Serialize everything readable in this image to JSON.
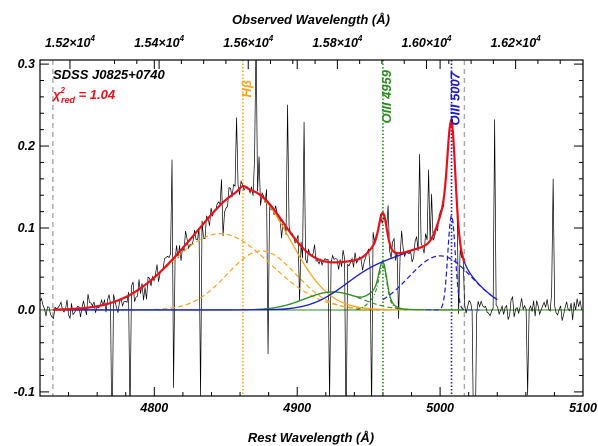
{
  "chart_data": {
    "type": "line",
    "object_name": "SDSS J0825+0740",
    "chi_label": {
      "symbol": "χ",
      "sup": "2",
      "sub": "red",
      "value": " = 1.04"
    },
    "xlabel": "Rest Wavelength (Å)",
    "x2label": "Observed Wavelength (Å)",
    "xlim": [
      4720,
      5100
    ],
    "ylim": [
      -0.105,
      0.305
    ],
    "x_ticks": [
      {
        "v": 4800,
        "label": "4800"
      },
      {
        "v": 4900,
        "label": "4900"
      },
      {
        "v": 5000,
        "label": "5000"
      },
      {
        "v": 5100,
        "label": "5100"
      }
    ],
    "y_ticks": [
      {
        "v": 0.3,
        "label": "0.3"
      },
      {
        "v": 0.2,
        "label": "0.2"
      },
      {
        "v": 0.1,
        "label": "0.1"
      },
      {
        "v": 0.0,
        "label": "0.0"
      },
      {
        "v": -0.1,
        "label": "-0.1"
      }
    ],
    "top_ticks": [
      {
        "v": 15200,
        "label": "1.52×10",
        "exp": "4"
      },
      {
        "v": 15400,
        "label": "1.54×10",
        "exp": "4"
      },
      {
        "v": 15600,
        "label": "1.56×10",
        "exp": "4"
      },
      {
        "v": 15800,
        "label": "1.58×10",
        "exp": "4"
      },
      {
        "v": 16000,
        "label": "1.60×10",
        "exp": "4"
      },
      {
        "v": 16200,
        "label": "1.62×10",
        "exp": "4"
      }
    ],
    "redshift_factor": 3.2061,
    "lines": [
      {
        "name": "Hβ",
        "x": 4862,
        "color": "#f5a623",
        "style": "dotted"
      },
      {
        "name": "OIII 4959",
        "x": 4960,
        "color": "#2e8b22",
        "style": "dotted"
      },
      {
        "name": "OIII 5007",
        "x": 5008,
        "color": "#1a1acd",
        "style": "dotted"
      }
    ],
    "fit_window": [
      4729,
      5017
    ],
    "components": {
      "hb_broad1": {
        "amp": 0.093,
        "mu": 4846,
        "sigma": 35
      },
      "hb_broad2": {
        "amp": 0.072,
        "mu": 4875,
        "sigma": 24
      },
      "hb_narrow": {
        "amp": 0.005,
        "mu": 4862,
        "sigma": 2.4
      },
      "fe_ii": {
        "amp": 0.022,
        "mu": 4925,
        "sigma": 20
      },
      "oiii_core_4959": {
        "amp": 0.038,
        "mu": 4960,
        "sigma": 2.6
      },
      "oiii_wing_4959": {
        "amp": 0.018,
        "mu": 4957,
        "sigma": 6
      },
      "oiii_core_5007": {
        "amp": 0.115,
        "mu": 5008,
        "sigma": 2.6
      },
      "oiii_wing_5007": {
        "amp": 0.055,
        "mu": 5005,
        "sigma": 6
      },
      "blue_4959": {
        "amp": 0.047,
        "mu": 4956,
        "sigma": 24
      },
      "blue_5007": {
        "amp": 0.066,
        "mu": 5000,
        "sigma": 22
      }
    },
    "colors": {
      "data": "#000000",
      "total_fit": "#e8101a",
      "hbeta": "#f5a623",
      "oiii4959": "#2e8b22",
      "oiii5007": "#1a1acd",
      "window": "#a8a8a8",
      "chi": "#e8101a"
    },
    "noise_seed": 12345
  }
}
